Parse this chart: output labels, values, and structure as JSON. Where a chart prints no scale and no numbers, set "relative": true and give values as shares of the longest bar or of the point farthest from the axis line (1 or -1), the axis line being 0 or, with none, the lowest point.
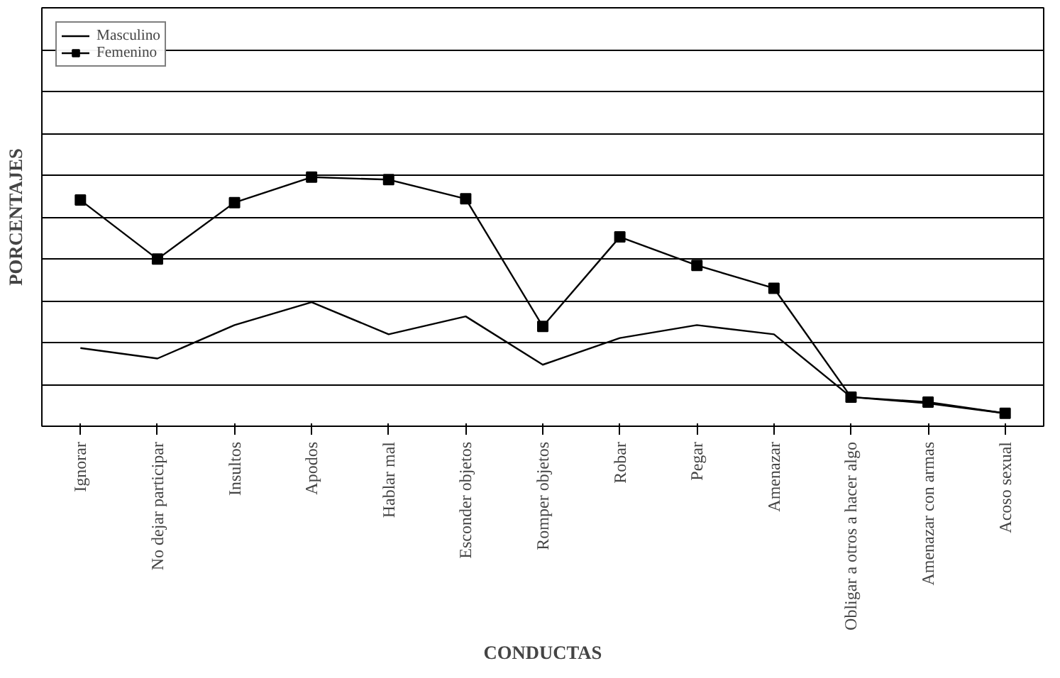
{
  "chart_data": {
    "type": "line",
    "relative": true,
    "xlabel": "CONDUCTAS",
    "ylabel": "PORCENTAJES",
    "categories": [
      "Ignorar",
      "No dejar participar",
      "Insultos",
      "Apodos",
      "Hablar mal",
      "Esconder objetos",
      "Romper objetos",
      "Robar",
      "Pegar",
      "Amenazar",
      "Obligar a otros a hacer algo",
      "Amenazar con armas",
      "Acoso sexual"
    ],
    "series": [
      {
        "name": "Masculino",
        "color": "#000000",
        "marker": "none",
        "values": [
          0.314,
          0.272,
          0.406,
          0.498,
          0.369,
          0.441,
          0.247,
          0.354,
          0.406,
          0.369,
          0.117,
          0.092,
          0.052
        ]
      },
      {
        "name": "Femenino",
        "color": "#000000",
        "marker": "square",
        "values": [
          0.908,
          0.671,
          0.898,
          1,
          0.99,
          0.913,
          0.401,
          0.76,
          0.646,
          0.554,
          0.117,
          0.097,
          0.052
        ]
      }
    ],
    "grid": "y",
    "legend": "top left",
    "tick_labels": "x",
    "line_style": "solid"
  }
}
